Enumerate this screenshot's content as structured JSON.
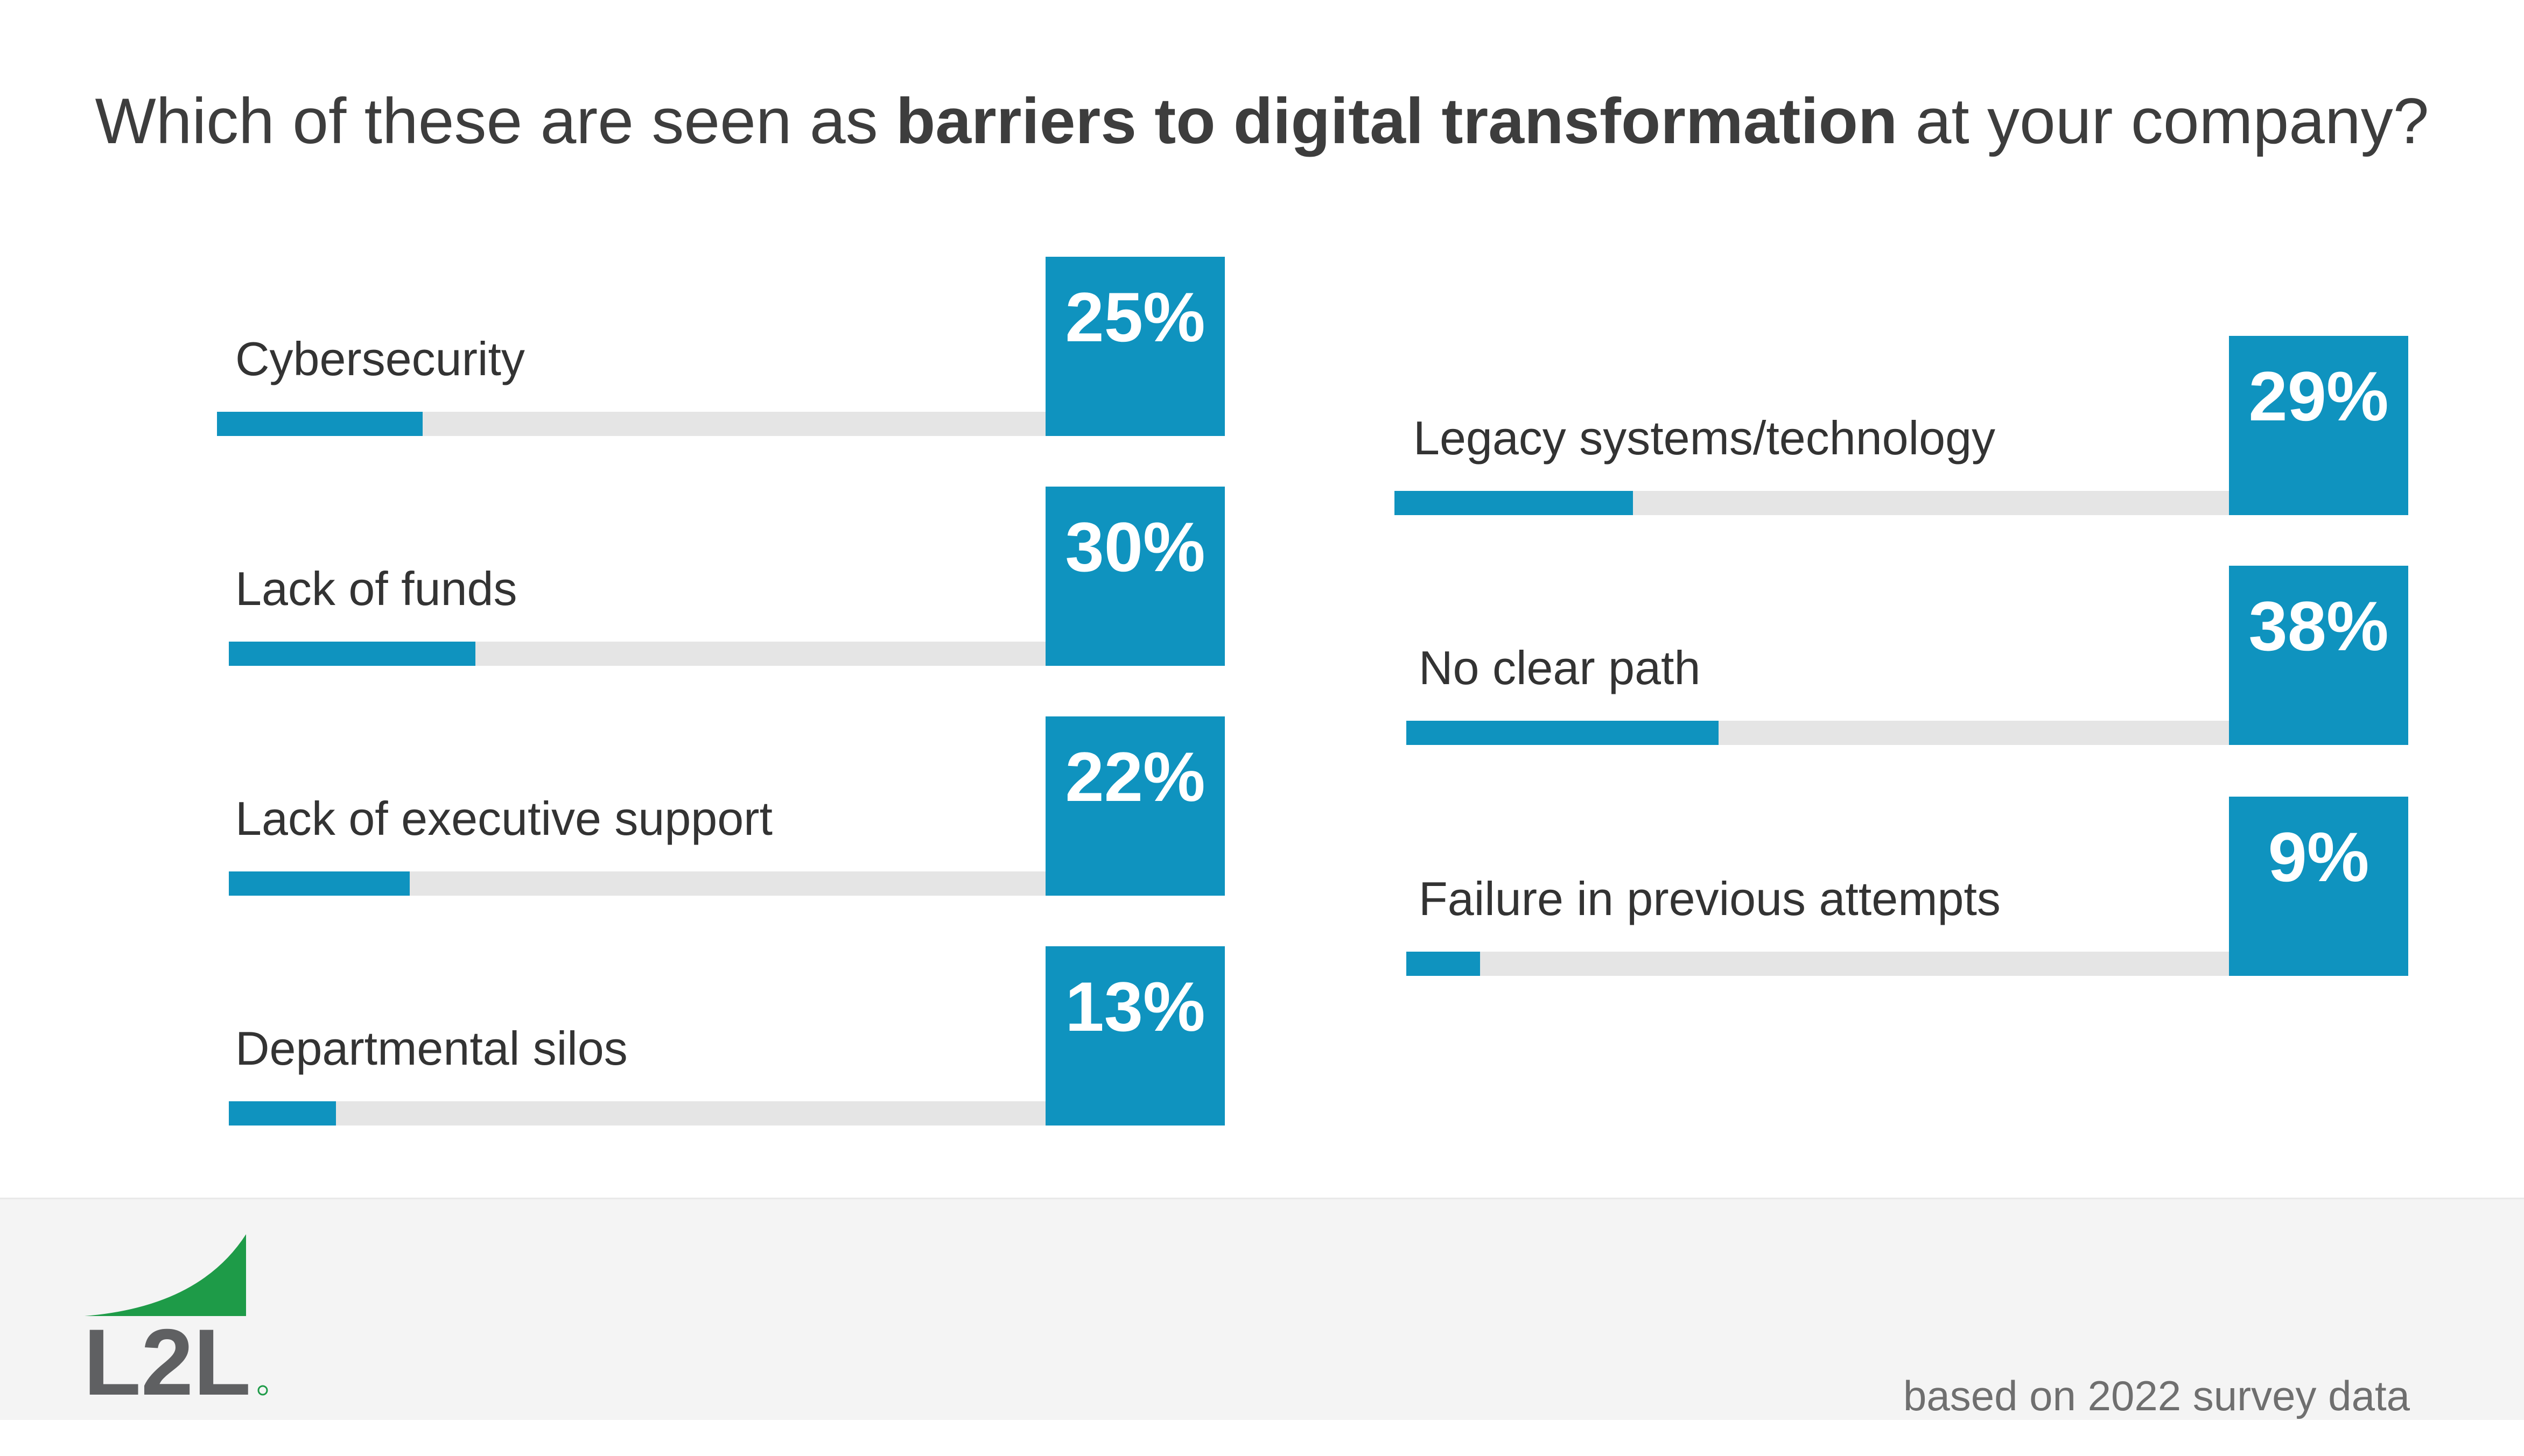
{
  "title": {
    "prefix": "Which of these are seen as ",
    "emphasis": "barriers to digital transformation",
    "suffix": " at your company?"
  },
  "colors": {
    "bar": "#0f93bf",
    "track": "#e5e5e5",
    "logo_green": "#1e9b48",
    "logo_gray": "#5f6062"
  },
  "chart_data": {
    "type": "bar",
    "orientation": "horizontal",
    "value_unit": "%",
    "xlim": [
      0,
      100
    ],
    "categories": [
      "Cybersecurity",
      "Lack of funds",
      "Lack of executive support",
      "Departmental silos",
      "Legacy systems/technology",
      "No clear path",
      "Failure in previous attempts"
    ],
    "values": [
      25,
      30,
      22,
      13,
      29,
      38,
      9
    ],
    "value_labels": [
      "25%",
      "30%",
      "22%",
      "13%",
      "29%",
      "38%",
      "9%"
    ]
  },
  "footer": {
    "logo_text": "L2L",
    "note": "based on 2022 survey data"
  }
}
